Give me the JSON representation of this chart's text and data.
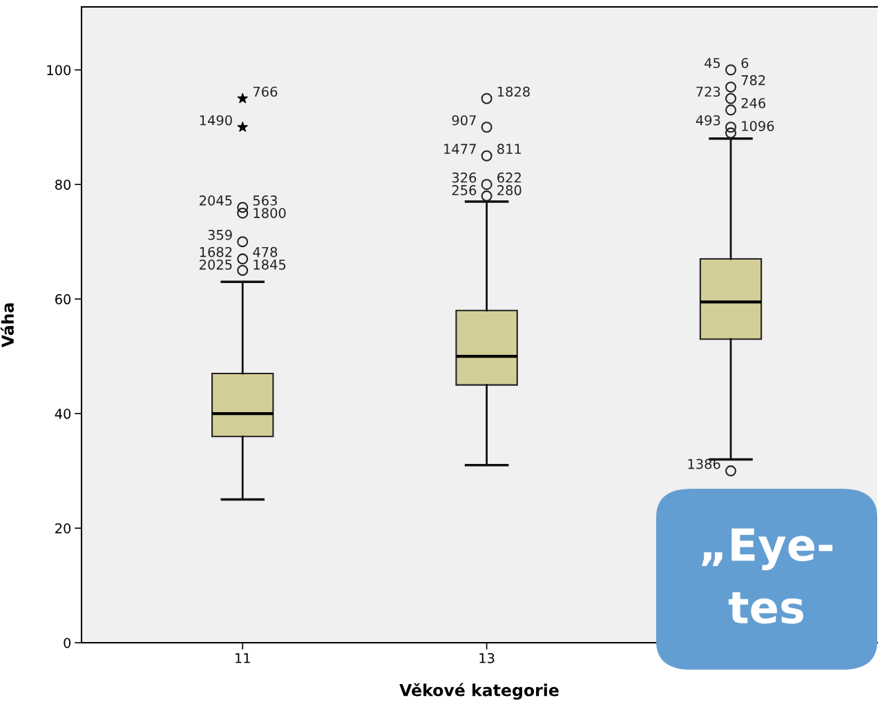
{
  "chart_data": {
    "type": "box",
    "xlabel": "Věkové kategorie",
    "ylabel": "Váha",
    "categories": [
      "11",
      "13",
      null
    ],
    "ylim": [
      0,
      111
    ],
    "yticks": [
      0,
      20,
      40,
      60,
      80,
      100
    ],
    "grid": false,
    "legend": false,
    "color": "#d3ce97",
    "boxes": [
      {
        "low": 25,
        "q1": 36,
        "median": 40,
        "q3": 47,
        "high": 63
      },
      {
        "low": 31,
        "q1": 45,
        "median": 50,
        "q3": 58,
        "high": 77
      },
      {
        "low": 32,
        "q1": 53,
        "median": 59.5,
        "q3": 67,
        "high": 88
      }
    ],
    "series": [
      {
        "type": "scatter",
        "x": [
          "11",
          "11",
          "11",
          "11",
          "11",
          "13",
          "13",
          "13",
          "13",
          "13",
          null,
          null,
          null,
          null,
          null,
          null,
          null
        ],
        "values": [
          65,
          67,
          70,
          75,
          76,
          78,
          80,
          85,
          90,
          95,
          30,
          89,
          90,
          93,
          95,
          97,
          100
        ],
        "marker": "circle",
        "color": "#222222"
      },
      {
        "type": "scatter",
        "x": [
          "11",
          "11"
        ],
        "values": [
          95,
          90
        ],
        "marker": "star",
        "color": "#000000"
      }
    ],
    "annotations": [
      {
        "text": "766",
        "x": "11",
        "y": 95
      },
      {
        "text": "1490",
        "x": "11",
        "y": 90
      },
      {
        "text": "563",
        "x": "11",
        "y": 76
      },
      {
        "text": "2045",
        "x": "11",
        "y": 76
      },
      {
        "text": "1800",
        "x": "11",
        "y": 75
      },
      {
        "text": "359",
        "x": "11",
        "y": 70
      },
      {
        "text": "478",
        "x": "11",
        "y": 67
      },
      {
        "text": "1682",
        "x": "11",
        "y": 67
      },
      {
        "text": "1845",
        "x": "11",
        "y": 65
      },
      {
        "text": "2025",
        "x": "11",
        "y": 65
      },
      {
        "text": "1828",
        "x": "13",
        "y": 95
      },
      {
        "text": "907",
        "x": "13",
        "y": 90
      },
      {
        "text": "811",
        "x": "13",
        "y": 85
      },
      {
        "text": "1477",
        "x": "13",
        "y": 85
      },
      {
        "text": "622",
        "x": "13",
        "y": 80
      },
      {
        "text": "326",
        "x": "13",
        "y": 80
      },
      {
        "text": "280",
        "x": "13",
        "y": 78
      },
      {
        "text": "256",
        "x": "13",
        "y": 78
      },
      "6",
      "45",
      "782",
      "723",
      "246",
      "493",
      "1096",
      "1386"
    ],
    "title": "„Eye-",
    "subtitle": "tes"
  }
}
